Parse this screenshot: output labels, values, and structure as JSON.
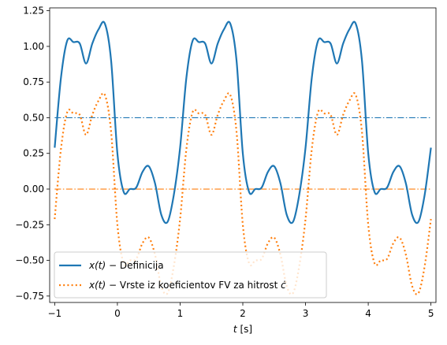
{
  "chart_data": {
    "type": "line",
    "xlabel_var": "t",
    "xlabel_unit": " [s]",
    "xlim": [
      -1.08,
      5.08
    ],
    "ylim": [
      -0.795,
      1.27
    ],
    "xticks": [
      -1,
      0,
      1,
      2,
      3,
      4,
      5
    ],
    "xtick_labels": [
      "−1",
      "0",
      "1",
      "2",
      "3",
      "4",
      "5"
    ],
    "yticks": [
      -0.75,
      -0.5,
      -0.25,
      0.0,
      0.25,
      0.5,
      0.75,
      1.0,
      1.25
    ],
    "ytick_labels": [
      "−0.75",
      "−0.50",
      "−0.25",
      "0.00",
      "0.25",
      "0.50",
      "0.75",
      "1.00",
      "1.25"
    ],
    "grid": false,
    "legend_position": "lower-left",
    "series": [
      {
        "name_var": "x(t)",
        "name_text": " − Definicija",
        "color": "#1f77b4",
        "style": "solid",
        "x": [
          -1.0,
          -0.9,
          -0.8,
          -0.7,
          -0.6,
          -0.5,
          -0.4,
          -0.3,
          -0.2,
          -0.1,
          0.0,
          0.1,
          0.2,
          0.3,
          0.4,
          0.5,
          0.6,
          0.7,
          0.8,
          0.9,
          1.0
        ],
        "y": [
          0.29,
          0.78,
          1.04,
          1.03,
          1.02,
          0.88,
          1.02,
          1.12,
          1.16,
          0.9,
          0.25,
          -0.02,
          0.0,
          0.01,
          0.12,
          0.16,
          0.04,
          -0.18,
          -0.23,
          -0.04,
          0.29
        ]
      },
      {
        "name_var": "x(t)",
        "name_text": " − Vrste iz koeficientov FV za hitrost ",
        "name_symbol": "ċ",
        "color": "#ff7f0e",
        "style": "dotted",
        "x": [
          -1.0,
          -0.9,
          -0.8,
          -0.7,
          -0.6,
          -0.5,
          -0.4,
          -0.3,
          -0.2,
          -0.1,
          0.0,
          0.1,
          0.2,
          0.3,
          0.4,
          0.5,
          0.6,
          0.7,
          0.8,
          0.9,
          1.0
        ],
        "y": [
          -0.21,
          0.28,
          0.54,
          0.53,
          0.52,
          0.38,
          0.52,
          0.62,
          0.66,
          0.4,
          -0.25,
          -0.52,
          -0.5,
          -0.49,
          -0.38,
          -0.34,
          -0.46,
          -0.68,
          -0.73,
          -0.54,
          -0.21
        ]
      }
    ],
    "hlines": [
      {
        "y": 0.5,
        "color": "#1f77b4",
        "style": "dashdot"
      },
      {
        "y": 0.0,
        "color": "#ff7f0e",
        "style": "dashdot"
      }
    ]
  }
}
